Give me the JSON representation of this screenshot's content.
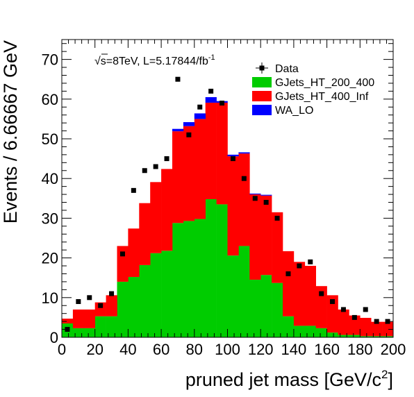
{
  "chart_data": {
    "type": "stacked-histogram",
    "xlabel": "pruned jet mass [GeV/c",
    "xlabel_sup": "2",
    "xlabel_close": "]",
    "ylabel": "Events / 6.66667 GeV",
    "annotation": {
      "sqrt": "√",
      "s_text": "s=8TeV, L=5.17844/fb",
      "exponent": "-1"
    },
    "xlim": [
      0,
      200
    ],
    "ylim": [
      0,
      75
    ],
    "x_ticks": [
      "0",
      "20",
      "40",
      "60",
      "80",
      "100",
      "120",
      "140",
      "160",
      "180",
      "200"
    ],
    "x_tick_values": [
      0,
      20,
      40,
      60,
      80,
      100,
      120,
      140,
      160,
      180,
      200
    ],
    "y_ticks": [
      "0",
      "10",
      "20",
      "30",
      "40",
      "50",
      "60",
      "70"
    ],
    "y_tick_values": [
      0,
      10,
      20,
      30,
      40,
      50,
      60,
      70
    ],
    "bin_edges": [
      0,
      6.66667,
      13.3333,
      20,
      26.6667,
      33.3333,
      40,
      46.6667,
      53.3333,
      60,
      66.6667,
      73.3333,
      80,
      86.6667,
      93.3333,
      100,
      106.667,
      113.333,
      120,
      126.667,
      133.333,
      140,
      146.667,
      153.333,
      160,
      166.667,
      173.333,
      180,
      186.667,
      193.333,
      200
    ],
    "series": [
      {
        "name": "GJets_HT_200_400",
        "color": "#00cc00",
        "values": [
          3.5,
          2.3,
          2.3,
          5.3,
          5.3,
          14.0,
          15.2,
          18.2,
          21.2,
          21.8,
          28.8,
          29.3,
          29.8,
          34.8,
          33.5,
          20.6,
          23.0,
          14.5,
          15.7,
          13.7,
          5.3,
          2.9,
          2.9,
          2.3,
          1.2,
          0.6,
          0.6,
          0.3,
          0.3,
          0.3
        ]
      },
      {
        "name": "GJets_HT_400_Inf",
        "color": "#ff0000",
        "values": [
          1.2,
          4.7,
          4.7,
          3.5,
          5.3,
          9.0,
          12.2,
          15.6,
          17.9,
          20.6,
          23.1,
          23.9,
          25.2,
          24.3,
          25.6,
          25.0,
          23.3,
          21.5,
          20.0,
          17.8,
          16.4,
          16.1,
          15.1,
          10.6,
          9.4,
          6.4,
          4.9,
          4.6,
          3.6,
          3.6
        ]
      },
      {
        "name": "WA_LO",
        "color": "#0000ff",
        "values": [
          0,
          0,
          0,
          0,
          0,
          0,
          0,
          0,
          0,
          0,
          0.6,
          1.0,
          1.4,
          1.4,
          0.4,
          0.4,
          0.3,
          0.2,
          0.2,
          0,
          0,
          0,
          0,
          0,
          0,
          0,
          0,
          0,
          0,
          0
        ]
      }
    ],
    "data_points": {
      "name": "Data",
      "x": [
        3.33,
        10,
        16.67,
        23.33,
        30,
        36.67,
        43.33,
        50,
        56.67,
        63.33,
        70,
        76.67,
        83.33,
        90,
        96.67,
        103.33,
        110,
        116.67,
        123.33,
        130,
        136.67,
        143.33,
        150,
        156.67,
        163.33,
        170,
        176.67,
        183.33,
        190,
        196.67
      ],
      "y": [
        2,
        9,
        10,
        8,
        11,
        21,
        37,
        42,
        43,
        45,
        65,
        51,
        58,
        62,
        59,
        45,
        40,
        35,
        34,
        30,
        16,
        18,
        19,
        11,
        9,
        7,
        5,
        7,
        4,
        4
      ]
    },
    "legend": {
      "placement": "top-right",
      "entries": [
        {
          "label": "Data",
          "kind": "marker",
          "color": "#000000"
        },
        {
          "label": "GJets_HT_200_400",
          "kind": "box",
          "color": "#00cc00"
        },
        {
          "label": "GJets_HT_400_Inf",
          "kind": "box",
          "color": "#ff0000"
        },
        {
          "label": "WA_LO",
          "kind": "box",
          "color": "#0000ff"
        }
      ]
    },
    "grid": false
  }
}
